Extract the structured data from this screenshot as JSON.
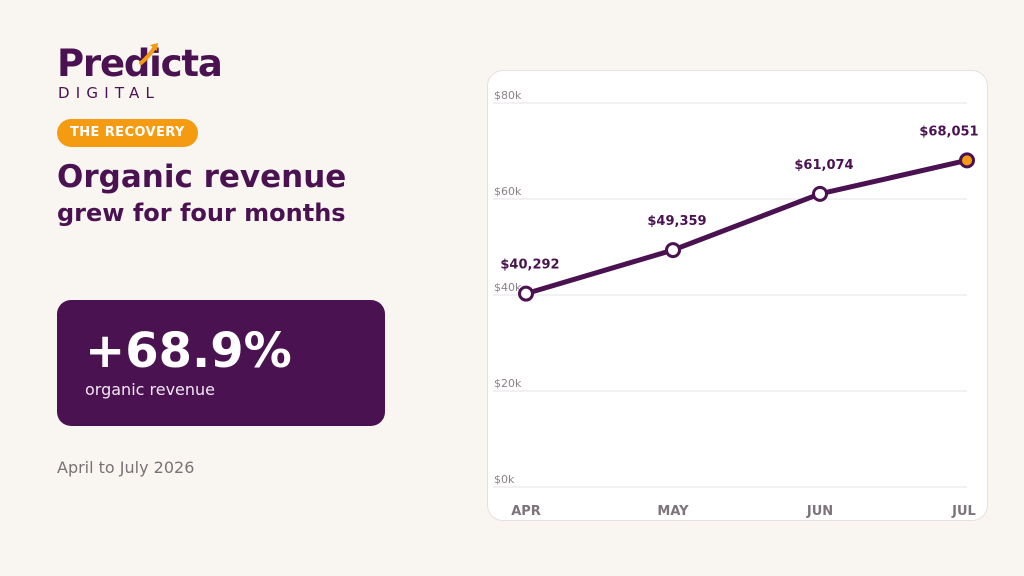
{
  "brand": {
    "name": "Predicta",
    "tagline": "DIGITAL"
  },
  "badge": "THE RECOVERY",
  "headline": {
    "line1": "Organic revenue",
    "line2": "grew for four months"
  },
  "kpi": {
    "value": "+68.9%",
    "label": "organic revenue"
  },
  "period": "April to July 2026",
  "colors": {
    "brand_purple": "#4a1250",
    "accent_orange": "#f59b12",
    "background": "#f9f6f2"
  },
  "chart_data": {
    "type": "line",
    "categories": [
      "APR",
      "MAY",
      "JUN",
      "JUL"
    ],
    "values": [
      40292,
      49359,
      61074,
      68051
    ],
    "data_labels": [
      "$40,292",
      "$49,359",
      "$61,074",
      "$68,051"
    ],
    "y_ticks": [
      "$0k",
      "$20k",
      "$40k",
      "$60k",
      "$80k"
    ],
    "ylim": [
      0,
      80000
    ],
    "title": "",
    "xlabel": "",
    "ylabel": "",
    "grid": true,
    "highlight_last_point": true
  }
}
